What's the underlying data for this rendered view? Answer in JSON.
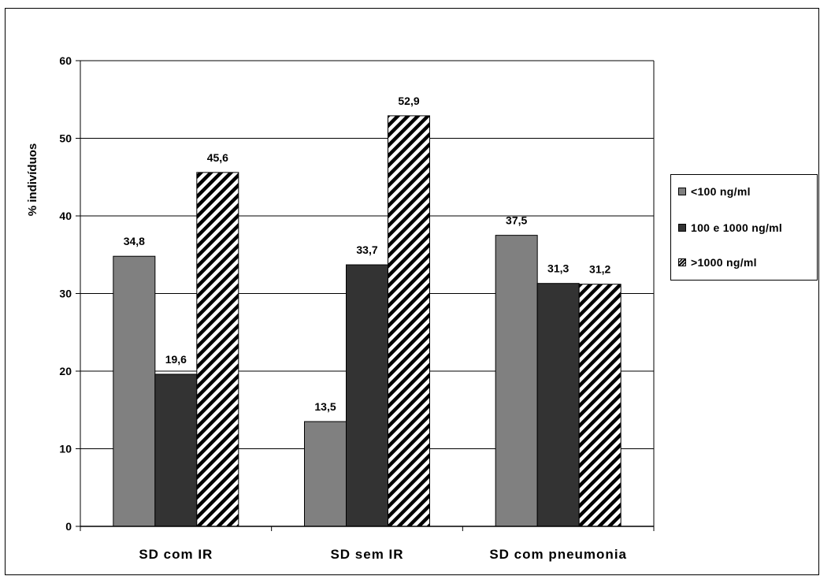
{
  "chart_data": {
    "type": "bar",
    "ylabel": "% indivíduos",
    "ylim": [
      0,
      60
    ],
    "yticks": [
      0,
      10,
      20,
      30,
      40,
      50,
      60
    ],
    "categories": [
      "SD com IR",
      "SD sem IR",
      "SD com pneumonia"
    ],
    "series": [
      {
        "name": "<100 ng/ml",
        "values": [
          34.8,
          13.5,
          37.5
        ],
        "labels": [
          "34,8",
          "13,5",
          "37,5"
        ],
        "color": "#808080",
        "pattern": "solid"
      },
      {
        "name": "100 e 1000 ng/ml",
        "values": [
          19.6,
          33.7,
          31.3
        ],
        "labels": [
          "19,6",
          "33,7",
          "31,3"
        ],
        "color": "#333333",
        "pattern": "solid"
      },
      {
        "name": ">1000 ng/ml",
        "values": [
          45.6,
          52.9,
          31.2
        ],
        "labels": [
          "45,6",
          "52,9",
          "31,2"
        ],
        "color": "#000000",
        "pattern": "diagonal-hatch"
      }
    ],
    "grid": true,
    "legend_position": "right"
  }
}
